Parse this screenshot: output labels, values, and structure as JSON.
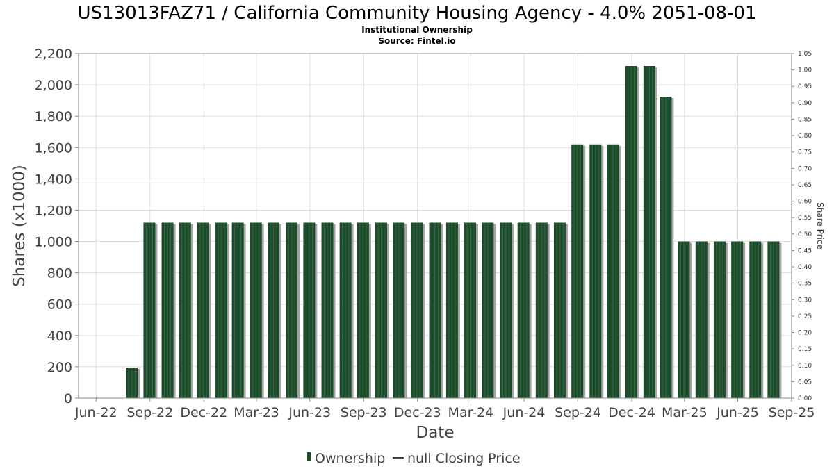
{
  "chart_data": {
    "type": "bar",
    "title": "US13013FAZ71 / California Community Housing Agency - 4.0% 2051-08-01",
    "subtitle_lines": [
      "Institutional Ownership",
      "Source: Fintel.io"
    ],
    "xlabel": "Date",
    "ylabel": "Shares (x1000)",
    "y2label": "Share Price",
    "ylim": [
      0,
      2200
    ],
    "y_ticks": [
      0,
      200,
      400,
      600,
      800,
      1000,
      1200,
      1400,
      1600,
      1800,
      2000,
      2200
    ],
    "y_tick_labels": [
      "0",
      "200",
      "400",
      "600",
      "800",
      "1,000",
      "1,200",
      "1,400",
      "1,600",
      "1,800",
      "2,000",
      "2,200"
    ],
    "y2lim": [
      0,
      1.05
    ],
    "y2_ticks": [
      0,
      0.05,
      0.1,
      0.15,
      0.2,
      0.25,
      0.3,
      0.35,
      0.4,
      0.45,
      0.5,
      0.55,
      0.6,
      0.65,
      0.7,
      0.75,
      0.8,
      0.85,
      0.9,
      0.95,
      1.0,
      1.05
    ],
    "y2_tick_labels": [
      "0.00",
      "0.05",
      "0.10",
      "0.15",
      "0.20",
      "0.25",
      "0.30",
      "0.35",
      "0.40",
      "0.45",
      "0.50",
      "0.55",
      "0.60",
      "0.65",
      "0.70",
      "0.75",
      "0.80",
      "0.85",
      "0.90",
      "0.95",
      "1.00",
      "1.05"
    ],
    "xlim": [
      "2022-06-01",
      "2025-10-01"
    ],
    "x_ticks": [
      {
        "date": "2022-07-01",
        "label": "Jun-22"
      },
      {
        "date": "2022-10-01",
        "label": "Sep-22"
      },
      {
        "date": "2023-01-01",
        "label": "Dec-22"
      },
      {
        "date": "2023-04-01",
        "label": "Mar-23"
      },
      {
        "date": "2023-07-01",
        "label": "Jun-23"
      },
      {
        "date": "2023-10-01",
        "label": "Sep-23"
      },
      {
        "date": "2024-01-01",
        "label": "Dec-23"
      },
      {
        "date": "2024-04-01",
        "label": "Mar-24"
      },
      {
        "date": "2024-07-01",
        "label": "Jun-24"
      },
      {
        "date": "2024-10-01",
        "label": "Sep-24"
      },
      {
        "date": "2025-01-01",
        "label": "Dec-24"
      },
      {
        "date": "2025-04-01",
        "label": "Mar-25"
      },
      {
        "date": "2025-07-01",
        "label": "Jun-25"
      },
      {
        "date": "2025-10-01",
        "label": "Sep-25"
      }
    ],
    "series": [
      {
        "name": "Ownership",
        "color": "#1f4a2c",
        "points": [
          {
            "date": "2022-08-31",
            "value": 195
          },
          {
            "date": "2022-09-30",
            "value": 1120
          },
          {
            "date": "2022-10-31",
            "value": 1120
          },
          {
            "date": "2022-11-30",
            "value": 1120
          },
          {
            "date": "2022-12-31",
            "value": 1120
          },
          {
            "date": "2023-01-31",
            "value": 1120
          },
          {
            "date": "2023-02-28",
            "value": 1120
          },
          {
            "date": "2023-03-31",
            "value": 1120
          },
          {
            "date": "2023-04-30",
            "value": 1120
          },
          {
            "date": "2023-05-31",
            "value": 1120
          },
          {
            "date": "2023-06-30",
            "value": 1120
          },
          {
            "date": "2023-07-31",
            "value": 1120
          },
          {
            "date": "2023-08-31",
            "value": 1120
          },
          {
            "date": "2023-09-30",
            "value": 1120
          },
          {
            "date": "2023-10-31",
            "value": 1120
          },
          {
            "date": "2023-11-30",
            "value": 1120
          },
          {
            "date": "2023-12-31",
            "value": 1120
          },
          {
            "date": "2024-01-31",
            "value": 1120
          },
          {
            "date": "2024-02-29",
            "value": 1120
          },
          {
            "date": "2024-03-31",
            "value": 1120
          },
          {
            "date": "2024-04-30",
            "value": 1120
          },
          {
            "date": "2024-05-31",
            "value": 1120
          },
          {
            "date": "2024-06-30",
            "value": 1120
          },
          {
            "date": "2024-07-31",
            "value": 1120
          },
          {
            "date": "2024-08-31",
            "value": 1120
          },
          {
            "date": "2024-09-30",
            "value": 1620
          },
          {
            "date": "2024-10-31",
            "value": 1620
          },
          {
            "date": "2024-11-30",
            "value": 1620
          },
          {
            "date": "2024-12-31",
            "value": 2120
          },
          {
            "date": "2025-01-31",
            "value": 2120
          },
          {
            "date": "2025-02-28",
            "value": 1925
          },
          {
            "date": "2025-03-31",
            "value": 1000
          },
          {
            "date": "2025-04-30",
            "value": 1000
          },
          {
            "date": "2025-05-31",
            "value": 1000
          },
          {
            "date": "2025-06-30",
            "value": 1000
          },
          {
            "date": "2025-07-31",
            "value": 1000
          },
          {
            "date": "2025-08-31",
            "value": 1000
          }
        ]
      }
    ],
    "legend": [
      {
        "label": "Ownership",
        "symbol": "bar",
        "color": "#1f4a2c"
      },
      {
        "label": "null Closing Price",
        "symbol": "line",
        "color": "#444444"
      }
    ],
    "legend_position": "bottom",
    "grid": true
  }
}
